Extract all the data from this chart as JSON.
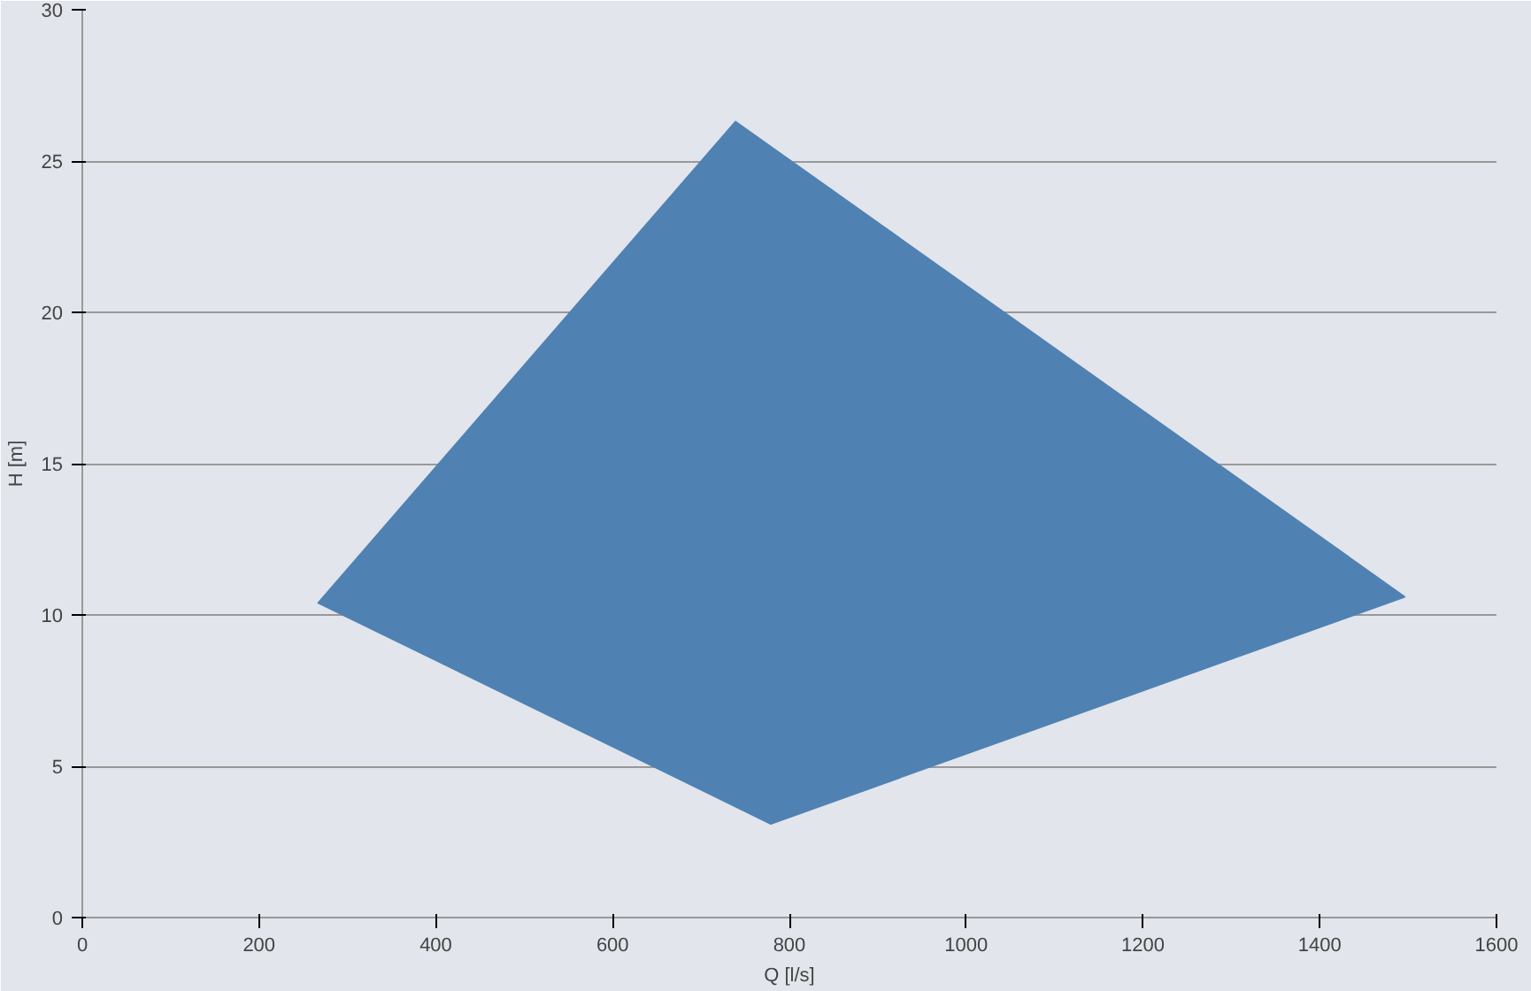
{
  "chart_data": {
    "type": "area",
    "xlabel": "Q [l/s]",
    "ylabel": "H [m]",
    "series": [
      {
        "color": "#4f82b3",
        "x": [
          267,
          739,
          1496,
          779
        ],
        "values": [
          10.4,
          26.3,
          10.6,
          3.1
        ]
      }
    ],
    "xlim": [
      0,
      1600
    ],
    "ylim": [
      0,
      30
    ],
    "xticks": [
      0,
      200,
      400,
      600,
      800,
      1000,
      1200,
      1400,
      1600
    ],
    "yticks": [
      0,
      5,
      10,
      15,
      20,
      25,
      30
    ],
    "grid": "y"
  }
}
